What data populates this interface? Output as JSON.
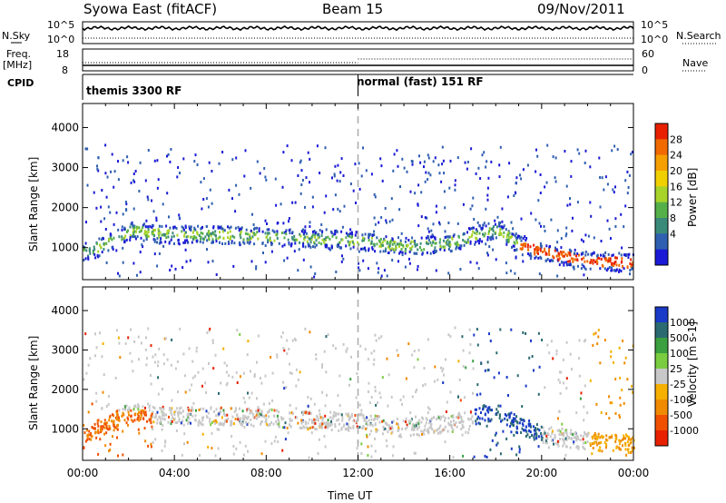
{
  "header": {
    "title": "Syowa East (fitACF)",
    "beam": "Beam 15",
    "date": "09/Nov/2011"
  },
  "strips": {
    "nsky_label": "N.Sky",
    "nsky_ticks": [
      "10^5",
      "10^0"
    ],
    "nsearch_label": "N.Search",
    "nsearch_ticks": [
      "10^5",
      "10^0"
    ],
    "freq_label": "Freq.",
    "freq_unit": "[MHz]",
    "freq_ticks": [
      "18",
      "8"
    ],
    "nave_label": "Nave",
    "nave_ticks": [
      "60",
      "0"
    ],
    "cpid_label": "CPID",
    "cpid_segments": [
      "themis 3300 RF",
      "normal (fast) 151 RF"
    ]
  },
  "chart_data": [
    {
      "type": "heatmap",
      "panel": "power",
      "ylabel": "Slant Range [km]",
      "yticks": [
        1000,
        2000,
        3000,
        4000
      ],
      "ylim": [
        200,
        4600
      ],
      "xlim": [
        0,
        24
      ],
      "colorbar_label": "Power [dB]",
      "colorbar_ticks": [
        "28",
        "24",
        "20",
        "16",
        "12",
        "8",
        "4"
      ],
      "colors": [
        "#1a1ad6",
        "#2f5fb0",
        "#3a8a7a",
        "#56b04a",
        "#a8d42a",
        "#f0d000",
        "#f5a000",
        "#f06a00",
        "#e82000"
      ],
      "mode_change_hour": 12,
      "echo_band": [
        {
          "x": 0,
          "y": 900
        },
        {
          "x": 1,
          "y": 1100
        },
        {
          "x": 2,
          "y": 1450
        },
        {
          "x": 3,
          "y": 1400
        },
        {
          "x": 4,
          "y": 1350
        },
        {
          "x": 6,
          "y": 1350
        },
        {
          "x": 8,
          "y": 1300
        },
        {
          "x": 10,
          "y": 1250
        },
        {
          "x": 12,
          "y": 1200
        },
        {
          "x": 14,
          "y": 1050
        },
        {
          "x": 16,
          "y": 1150
        },
        {
          "x": 18,
          "y": 1500
        },
        {
          "x": 19,
          "y": 1100
        },
        {
          "x": 20,
          "y": 900
        },
        {
          "x": 22,
          "y": 700
        },
        {
          "x": 24,
          "y": 650
        }
      ]
    },
    {
      "type": "heatmap",
      "panel": "velocity",
      "ylabel": "Slant Range [km]",
      "yticks": [
        1000,
        2000,
        3000,
        4000
      ],
      "ylim": [
        200,
        4600
      ],
      "xlim": [
        0,
        24
      ],
      "colorbar_label": "Velocity [m s-1]",
      "colorbar_ticks": [
        "1000",
        "500",
        "100",
        "25",
        "-25",
        "-100",
        "-500",
        "-1000"
      ],
      "colors": [
        "#1a3ac8",
        "#2a6a70",
        "#3aa040",
        "#7acc40",
        "#c8c8c8",
        "#f5b000",
        "#f08a00",
        "#f05000",
        "#e82000"
      ],
      "mode_change_hour": 12
    }
  ],
  "xaxis": {
    "label": "Time UT",
    "ticks": [
      "00:00",
      "04:00",
      "08:00",
      "12:00",
      "16:00",
      "20:00",
      "00:00"
    ]
  }
}
